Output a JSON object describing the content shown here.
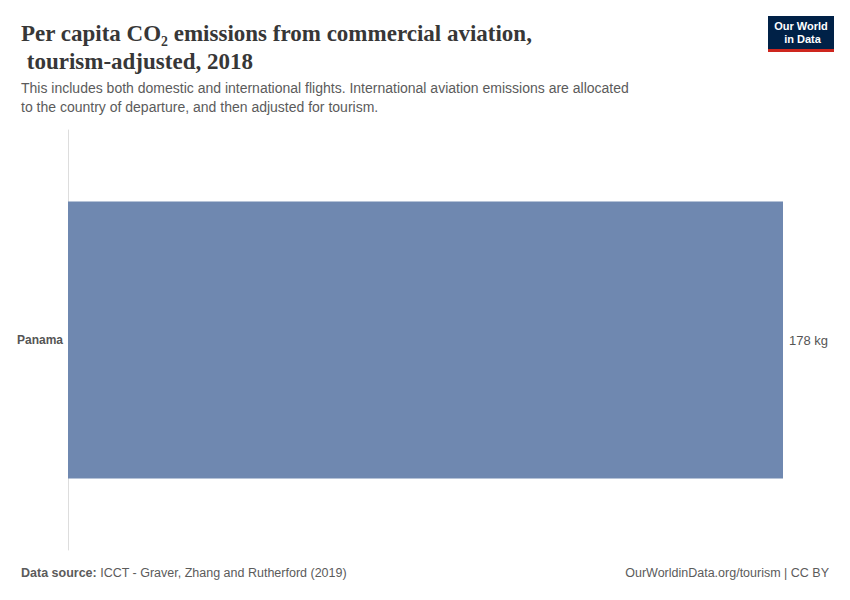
{
  "chart_data": {
    "type": "bar",
    "title": "Per capita CO₂ emissions from commercial aviation, tourism-adjusted, 2018",
    "subtitle": "This includes both domestic and international flights. International aviation emissions are allocated to the country of departure, and then adjusted for tourism.",
    "categories": [
      "Panama"
    ],
    "values": [
      178
    ],
    "value_labels": [
      "178 kg"
    ],
    "color": "#6f88b0",
    "orientation": "horizontal",
    "data_labels": true,
    "xlim": [
      0,
      178
    ],
    "tick_labels": "y",
    "grid": false,
    "source_label": "Data source:",
    "source": "ICCT - Graver, Zhang and Rutherford (2019)",
    "footer_right": "OurWorldinData.org/tourism | CC BY",
    "logo": "Our World in Data"
  }
}
